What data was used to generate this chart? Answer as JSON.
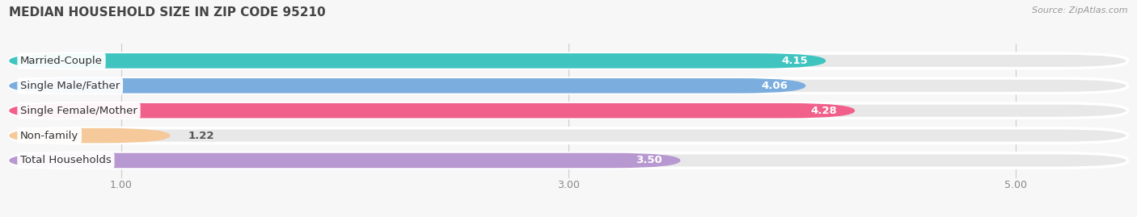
{
  "title": "MEDIAN HOUSEHOLD SIZE IN ZIP CODE 95210",
  "source": "Source: ZipAtlas.com",
  "categories": [
    "Married-Couple",
    "Single Male/Father",
    "Single Female/Mother",
    "Non-family",
    "Total Households"
  ],
  "values": [
    4.15,
    4.06,
    4.28,
    1.22,
    3.5
  ],
  "bar_colors": [
    "#3fc4c0",
    "#7baede",
    "#f0608a",
    "#f5c99a",
    "#b898d0"
  ],
  "bar_bg_color": "#e8e8e8",
  "xlim_min": 0.5,
  "xlim_max": 5.5,
  "xdata_min": 0.0,
  "xdata_max": 5.5,
  "xticks": [
    1.0,
    3.0,
    5.0
  ],
  "xticklabels": [
    "1.00",
    "3.00",
    "5.00"
  ],
  "background_color": "#f7f7f7",
  "title_fontsize": 11,
  "bar_height": 0.6,
  "label_fontsize": 9.5,
  "category_fontsize": 9.5,
  "source_fontsize": 8
}
